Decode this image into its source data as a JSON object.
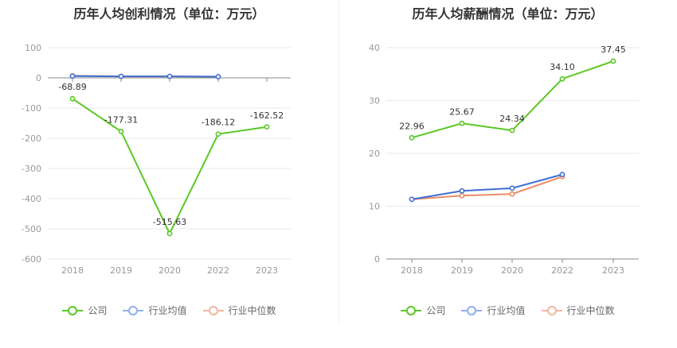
{
  "colors": {
    "company": "#5ac724",
    "industry_avg": "#3f6fd4",
    "industry_median": "#ee8a63",
    "legend_avg": "#8fb0ec",
    "legend_median": "#f4b69f",
    "grid": "#e8e8ee",
    "axis": "#888888"
  },
  "legend": {
    "company": "公司",
    "industry_avg": "行业均值",
    "industry_median": "行业中位数"
  },
  "chart_data": [
    {
      "type": "line",
      "title": "历年人均创利情况（单位：万元）",
      "categories": [
        "2018",
        "2019",
        "2020",
        "2022",
        "2023"
      ],
      "ylim": [
        -600,
        100
      ],
      "yticks": [
        100,
        0,
        -100,
        -200,
        -300,
        -400,
        -500,
        -600
      ],
      "series": [
        {
          "name": "公司",
          "values": [
            -68.89,
            -177.31,
            -515.63,
            -186.12,
            -162.52
          ],
          "labels": [
            "-68.89",
            "-177.31",
            "-515.63",
            "-186.12",
            "-162.52"
          ]
        },
        {
          "name": "行业均值",
          "values": [
            6,
            5,
            5,
            4,
            null
          ]
        },
        {
          "name": "行业中位数",
          "values": [
            7,
            5,
            5,
            4,
            null
          ]
        }
      ],
      "grid": true,
      "legend_position": "bottom"
    },
    {
      "type": "line",
      "title": "历年人均薪酬情况（单位：万元）",
      "categories": [
        "2018",
        "2019",
        "2020",
        "2022",
        "2023"
      ],
      "ylim": [
        0,
        40
      ],
      "yticks": [
        40,
        30,
        20,
        10,
        0
      ],
      "series": [
        {
          "name": "公司",
          "values": [
            22.96,
            25.67,
            24.34,
            34.1,
            37.45
          ],
          "labels": [
            "22.96",
            "25.67",
            "24.34",
            "34.10",
            "37.45"
          ]
        },
        {
          "name": "行业均值",
          "values": [
            11.3,
            12.9,
            13.4,
            16.0,
            null
          ]
        },
        {
          "name": "行业中位数",
          "values": [
            11.3,
            12.0,
            12.3,
            15.6,
            null
          ]
        }
      ],
      "grid": true,
      "legend_position": "bottom"
    }
  ]
}
